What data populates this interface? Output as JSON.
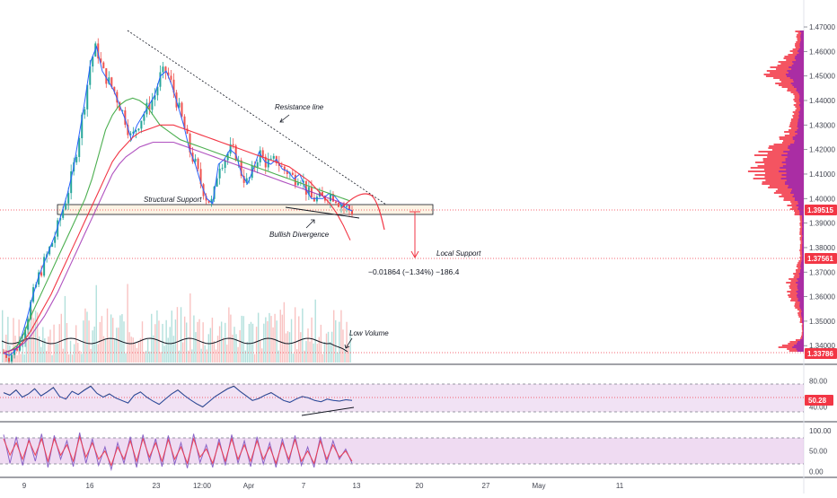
{
  "chart_data": [
    {
      "type": "line",
      "panel": "price",
      "y_ticks": [
        1.47,
        1.46,
        1.45,
        1.44,
        1.43,
        1.42,
        1.41,
        1.4,
        1.39,
        1.38,
        1.37,
        1.36,
        1.35,
        1.34
      ],
      "ylim": [
        1.3335,
        1.4755
      ],
      "x_tick_labels": [
        "9",
        "16",
        "23",
        "12:00",
        "Apr",
        "7",
        "13",
        "20",
        "27",
        "May",
        "11"
      ],
      "price_labels": [
        {
          "value": "1.39515",
          "color": "#f23645"
        },
        {
          "value": "1.37561",
          "color": "#f23645"
        },
        {
          "value": "1.33786",
          "color": "#f23645"
        }
      ],
      "series": [
        {
          "values": [
            1.337,
            1.336,
            1.338,
            1.343,
            1.351,
            1.36,
            1.368,
            1.374,
            1.38,
            1.386,
            1.394,
            1.402,
            1.412,
            1.426,
            1.44,
            1.456,
            1.462,
            1.452,
            1.448,
            1.444,
            1.438,
            1.432,
            1.424,
            1.43,
            1.434,
            1.438,
            1.442,
            1.45,
            1.452,
            1.446,
            1.438,
            1.43,
            1.42,
            1.414,
            1.406,
            1.4,
            1.398,
            1.414,
            1.416,
            1.42,
            1.418,
            1.41,
            1.406,
            1.412,
            1.419,
            1.415,
            1.414,
            1.416,
            1.412,
            1.411,
            1.408,
            1.41,
            1.404,
            1.4,
            1.4,
            1.4,
            1.402,
            1.401,
            1.398,
            1.396,
            1.395
          ]
        },
        {
          "values": [
            1.337,
            1.338,
            1.34,
            1.345,
            1.352,
            1.358,
            1.364,
            1.37,
            1.376,
            1.382,
            1.388,
            1.394,
            1.4,
            1.408,
            1.418,
            1.428,
            1.434,
            1.438,
            1.44,
            1.441,
            1.44,
            1.438,
            1.434,
            1.43,
            1.428,
            1.426,
            1.424,
            1.423,
            1.422,
            1.421,
            1.42,
            1.419,
            1.418,
            1.417,
            1.416,
            1.415,
            1.414,
            1.413,
            1.412,
            1.411,
            1.41,
            1.409,
            1.408,
            1.407,
            1.406,
            1.405,
            1.404,
            1.403,
            1.402,
            1.401,
            1.4,
            1.399
          ]
        },
        {
          "values": [
            1.337,
            1.338,
            1.339,
            1.342,
            1.346,
            1.351,
            1.356,
            1.361,
            1.367,
            1.373,
            1.379,
            1.385,
            1.391,
            1.397,
            1.403,
            1.409,
            1.415,
            1.419,
            1.422,
            1.425,
            1.427,
            1.428,
            1.429,
            1.43,
            1.43,
            1.43,
            1.429,
            1.428,
            1.427,
            1.426,
            1.425,
            1.424,
            1.423,
            1.422,
            1.421,
            1.42,
            1.419,
            1.418,
            1.417,
            1.416,
            1.415,
            1.414,
            1.413,
            1.411,
            1.409,
            1.407,
            1.404,
            1.401,
            1.398,
            1.394,
            1.389,
            1.383
          ]
        },
        {
          "values": [
            1.337,
            1.338,
            1.339,
            1.341,
            1.344,
            1.348,
            1.352,
            1.357,
            1.362,
            1.368,
            1.374,
            1.38,
            1.386,
            1.392,
            1.398,
            1.404,
            1.41,
            1.414,
            1.417,
            1.419,
            1.421,
            1.422,
            1.423,
            1.423,
            1.423,
            1.423,
            1.422,
            1.421,
            1.42,
            1.419,
            1.418,
            1.417,
            1.416,
            1.415,
            1.414,
            1.413,
            1.412,
            1.411,
            1.41,
            1.409,
            1.408,
            1.407,
            1.406,
            1.405,
            1.404,
            1.403,
            1.402,
            1.401,
            1.4,
            1.399,
            1.398,
            1.397
          ]
        }
      ],
      "annotations": [
        {
          "text": "Resistance line"
        },
        {
          "text": "Structural Support"
        },
        {
          "text": "Bullish Divergence"
        },
        {
          "text": "Local Support"
        },
        {
          "text": "Low Volume"
        },
        {
          "text": "−0.01864 (−1.34%) −186.4"
        }
      ],
      "grid": false
    },
    {
      "type": "line",
      "panel": "oscillator-1",
      "y_ticks": [
        "80.00",
        "40.00"
      ],
      "ylim": [
        20,
        100
      ],
      "value_label": {
        "value": "50.28",
        "color": "#f23645"
      },
      "series": [
        {
          "values": [
            62,
            58,
            66,
            55,
            60,
            68,
            57,
            63,
            70,
            56,
            52,
            64,
            59,
            66,
            72,
            61,
            55,
            60,
            54,
            50,
            46,
            58,
            63,
            55,
            49,
            44,
            52,
            60,
            66,
            58,
            51,
            45,
            40,
            48,
            56,
            62,
            68,
            72,
            64,
            57,
            50,
            53,
            58,
            62,
            56,
            50,
            47,
            52,
            56,
            54,
            50,
            48,
            52,
            50,
            49,
            51,
            50
          ]
        }
      ]
    },
    {
      "type": "line",
      "panel": "oscillator-2",
      "y_ticks": [
        "100.00",
        "50.00",
        "0.00"
      ],
      "ylim": [
        -10,
        115
      ],
      "series": [
        {
          "values": [
            90,
            20,
            85,
            15,
            80,
            25,
            92,
            10,
            88,
            30,
            75,
            12,
            95,
            20,
            80,
            15,
            60,
            5,
            70,
            20,
            85,
            10,
            90,
            25,
            80,
            12,
            88,
            18,
            70,
            8,
            92,
            22,
            65,
            10,
            80,
            15,
            90,
            20,
            75,
            12,
            85,
            18,
            70,
            10,
            80,
            20,
            88,
            15,
            60,
            10,
            85,
            20,
            75,
            30,
            55,
            20
          ]
        },
        {
          "values": [
            80,
            40,
            70,
            30,
            75,
            40,
            80,
            25,
            80,
            40,
            65,
            25,
            85,
            35,
            70,
            30,
            50,
            15,
            60,
            30,
            75,
            25,
            80,
            35,
            70,
            25,
            78,
            30,
            60,
            20,
            80,
            35,
            55,
            20,
            70,
            25,
            80,
            30,
            65,
            25,
            75,
            30,
            60,
            20,
            70,
            30,
            78,
            25,
            50,
            20,
            75,
            30,
            65,
            35,
            50,
            25
          ]
        }
      ]
    }
  ]
}
